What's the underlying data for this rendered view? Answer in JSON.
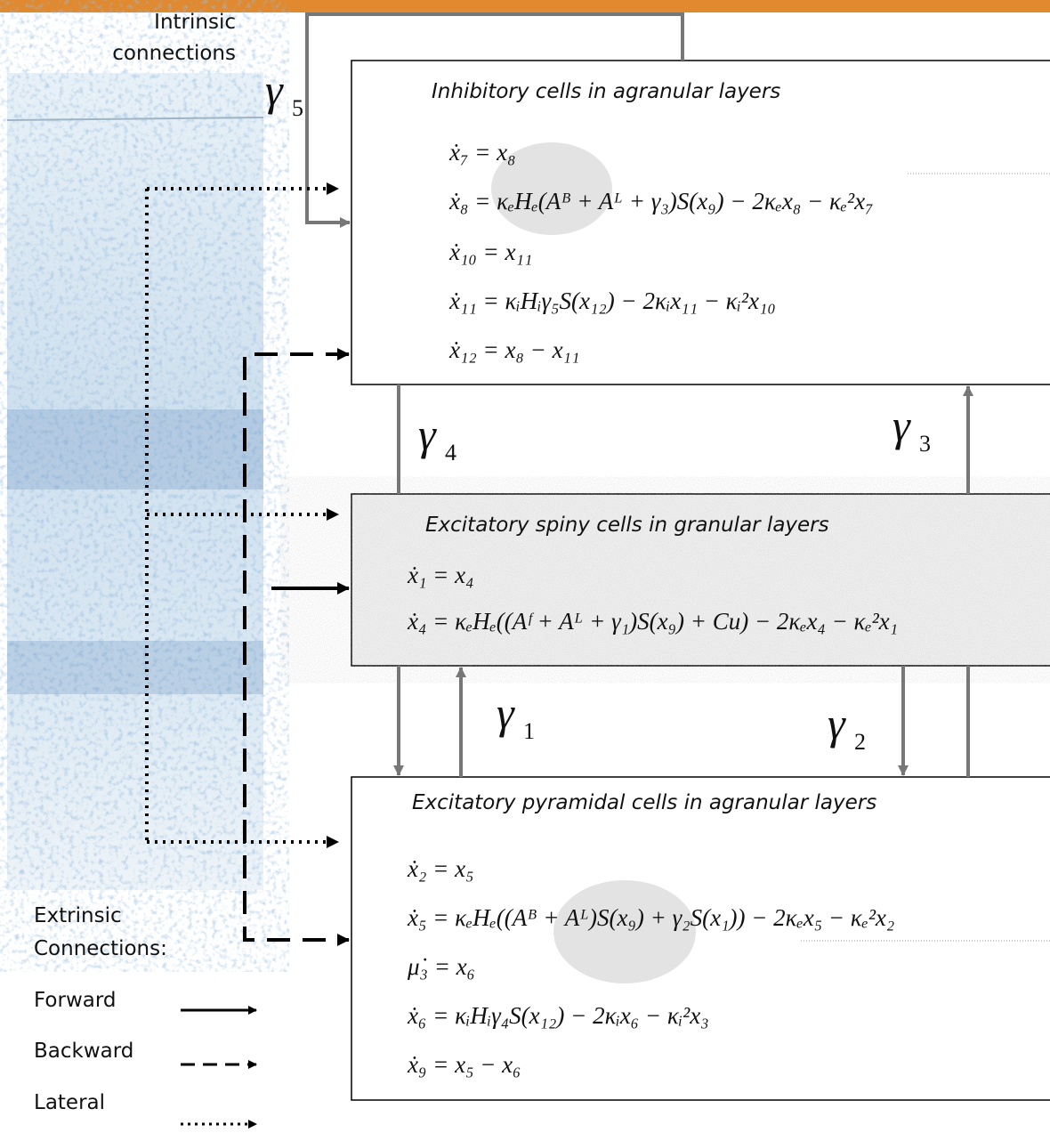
{
  "intrinsic_label": [
    "Intrinsic",
    "connections"
  ],
  "gammas": [
    {
      "symbol": "γ",
      "index": "5"
    },
    {
      "symbol": "γ",
      "index": "4"
    },
    {
      "symbol": "γ",
      "index": "3"
    },
    {
      "symbol": "γ",
      "index": "1"
    },
    {
      "symbol": "γ",
      "index": "2"
    }
  ],
  "boxes": [
    {
      "title": "Inhibitory cells in agranular layers",
      "equations": [
        "ẋ₇ = x₈",
        "ẋ₈ = κₑHₑ(Aᴮ + Aᴸ + γ₃)S(x₉) − 2κₑx₈ − κₑ²x₇",
        "ẋ₁₀ = x₁₁",
        "ẋ₁₁ = κᵢHᵢγ₅S(x₁₂) − 2κᵢx₁₁ − κᵢ²x₁₀",
        "ẋ₁₂ = x₈ − x₁₁"
      ]
    },
    {
      "title": "Excitatory spiny cells in granular layers",
      "equations": [
        "ẋ₁ = x₄",
        "ẋ₄ = κₑHₑ((Aᶠ + Aᴸ + γ₁)S(x₉) + Cu) − 2κₑx₄ − κₑ²x₁"
      ]
    },
    {
      "title": "Excitatory pyramidal cells in agranular layers",
      "equations": [
        "ẋ₂ = x₅",
        "ẋ₅ = κₑHₑ((Aᴮ + Aᴸ)S(x₉) + γ₂S(x₁)) − 2κₑx₅ − κₑ²x₂",
        "μ̇₃ = x₆",
        "ẋ₆ = κᵢHᵢγ₄S(x₁₂) − 2κᵢx₆ − κᵢ²x₃",
        "ẋ₉ = x₅ − x₆"
      ]
    }
  ],
  "legend": {
    "heading": [
      "Extrinsic",
      "Connections:"
    ],
    "items": [
      "Forward",
      "Backward",
      "Lateral"
    ]
  }
}
